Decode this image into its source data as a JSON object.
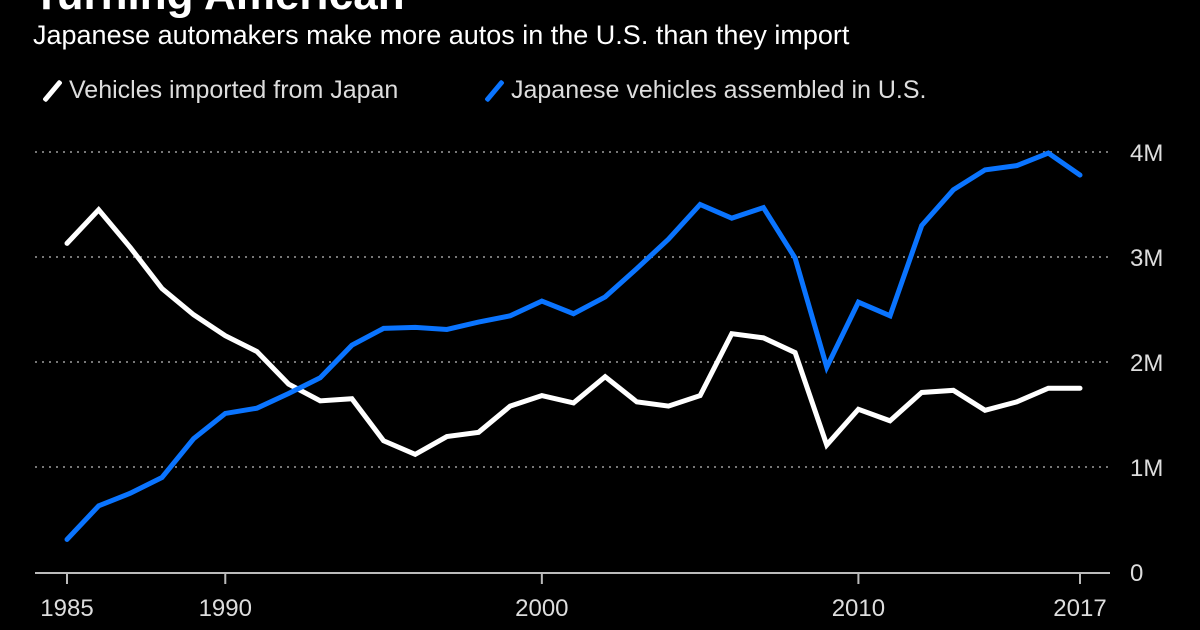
{
  "chart_data": {
    "type": "line",
    "title": "Turning American",
    "subtitle": "Japanese automakers make more autos in the U.S. than they import",
    "xlabel": "",
    "ylabel": "",
    "x": [
      1985,
      1986,
      1987,
      1988,
      1989,
      1990,
      1991,
      1992,
      1993,
      1994,
      1995,
      1996,
      1997,
      1998,
      1999,
      2000,
      2001,
      2002,
      2003,
      2004,
      2005,
      2006,
      2007,
      2008,
      2009,
      2010,
      2011,
      2012,
      2013,
      2014,
      2015,
      2016,
      2017
    ],
    "xlim": [
      1985,
      2017
    ],
    "ylim": [
      0,
      4000000
    ],
    "x_ticks": [
      1985,
      1990,
      2000,
      2010,
      2017
    ],
    "x_tick_labels": [
      "1985",
      "1990",
      "2000",
      "2010",
      "2017"
    ],
    "y_ticks": [
      0,
      1000000,
      2000000,
      3000000,
      4000000
    ],
    "y_tick_labels": [
      "0",
      "1M",
      "2M",
      "3M",
      "4M"
    ],
    "grid": "horizontal dotted",
    "legend_position": "top-left",
    "series": [
      {
        "name": "Vehicles imported from Japan",
        "color": "#ffffff",
        "values": [
          3.13,
          3.45,
          3.09,
          2.7,
          2.45,
          2.25,
          2.1,
          1.79,
          1.63,
          1.65,
          1.25,
          1.12,
          1.29,
          1.33,
          1.58,
          1.68,
          1.61,
          1.86,
          1.62,
          1.58,
          1.68,
          2.27,
          2.23,
          2.09,
          1.21,
          1.55,
          1.44,
          1.71,
          1.73,
          1.54,
          1.62,
          1.75,
          1.75
        ],
        "unit": "millions"
      },
      {
        "name": "Japanese vehicles assembled in U.S.",
        "color": "#0a74ff",
        "values": [
          0.31,
          0.63,
          0.75,
          0.9,
          1.27,
          1.51,
          1.56,
          1.7,
          1.85,
          2.16,
          2.32,
          2.33,
          2.31,
          2.38,
          2.44,
          2.58,
          2.46,
          2.62,
          2.89,
          3.17,
          3.5,
          3.37,
          3.47,
          2.99,
          1.95,
          2.57,
          2.44,
          3.3,
          3.64,
          3.83,
          3.87,
          3.99,
          3.78
        ],
        "unit": "millions"
      }
    ]
  }
}
